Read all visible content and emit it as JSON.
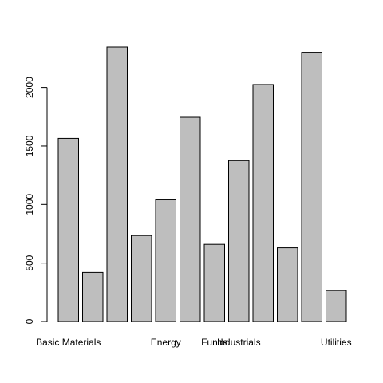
{
  "chart_data": {
    "type": "bar",
    "title": "",
    "xlabel": "",
    "ylabel": "",
    "categories": [
      "Basic Materials",
      "",
      "",
      "",
      "Energy",
      "",
      "Funds",
      "Industrials",
      "",
      "",
      "",
      "Utilities"
    ],
    "values": [
      1565,
      420,
      2345,
      735,
      1040,
      1745,
      660,
      1375,
      2025,
      630,
      2300,
      265
    ],
    "ylim": [
      0,
      2345
    ],
    "yticks": [
      0,
      500,
      1000,
      1500,
      2000
    ],
    "bar_color": "#bebebe",
    "bar_stroke": "#000000",
    "grid": false,
    "legend": "none"
  }
}
